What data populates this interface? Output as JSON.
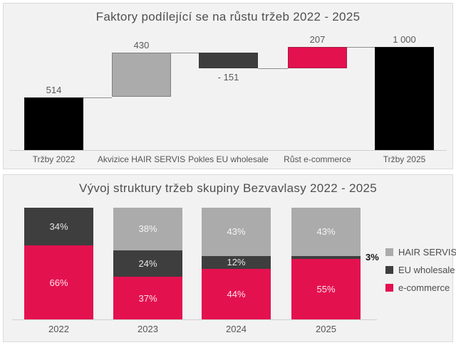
{
  "colors": {
    "pink": "#e4114f",
    "dark_gray": "#3e3e3e",
    "light_gray": "#ababab",
    "black": "#000000",
    "panel_bg": "#f2f2f2",
    "panel_border": "#dadada",
    "title_text": "#4f4f4f",
    "value_label_text": "#595959",
    "axis_line": "#cfcfcf",
    "connector_line": "#8f8f8f",
    "segment_label_text": "#ffffff"
  },
  "chart_data": [
    {
      "type": "waterfall",
      "title": "Faktory podílející se na růstu tržeb 2022 - 2025",
      "categories": [
        "Tržby 2022",
        "Akvizice HAIR SERVIS",
        "Pokles EU wholesale",
        "Růst e-commerce",
        "Tržby 2025"
      ],
      "values": [
        514,
        430,
        -151,
        207,
        1000
      ],
      "value_labels": [
        "514",
        "430",
        "- 151",
        "207",
        "1 000"
      ],
      "bar_kinds": [
        "total",
        "increase",
        "decrease",
        "increase",
        "total"
      ],
      "bar_colors": [
        "#000000",
        "#ababab",
        "#3e3e3e",
        "#e4114f",
        "#000000"
      ],
      "ylim": [
        0,
        1050
      ],
      "grid": false,
      "legend_position": "none"
    },
    {
      "type": "bar",
      "subtype": "stacked-percent",
      "title": "Vývoj struktury tržeb skupiny Bezvavlasy 2022 - 2025",
      "categories": [
        "2022",
        "2023",
        "2024",
        "2025"
      ],
      "series": [
        {
          "name": "HAIR SERVIS",
          "color": "#ababab",
          "values": [
            0,
            38,
            43,
            43
          ]
        },
        {
          "name": "EU wholesale",
          "color": "#3e3e3e",
          "values": [
            34,
            24,
            12,
            3
          ]
        },
        {
          "name": "e-commerce",
          "color": "#e4114f",
          "values": [
            66,
            37,
            44,
            55
          ]
        }
      ],
      "unit": "%",
      "ylim": [
        0,
        100
      ],
      "grid": false,
      "legend_position": "right",
      "outside_label": {
        "category": "2025",
        "series": "EU wholesale",
        "text": "3%"
      }
    }
  ]
}
